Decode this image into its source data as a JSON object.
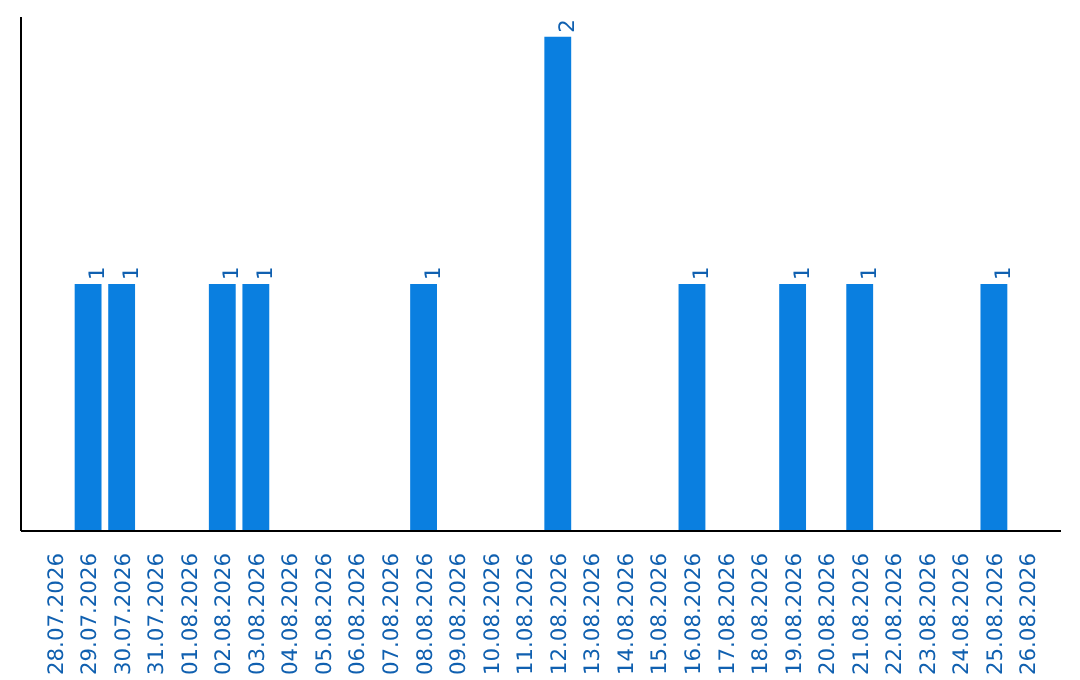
{
  "chart_data": {
    "type": "bar",
    "categories": [
      "28.07.2026",
      "29.07.2026",
      "30.07.2026",
      "31.07.2026",
      "01.08.2026",
      "02.08.2026",
      "03.08.2026",
      "04.08.2026",
      "05.08.2026",
      "06.08.2026",
      "07.08.2026",
      "08.08.2026",
      "09.08.2026",
      "10.08.2026",
      "11.08.2026",
      "12.08.2026",
      "13.08.2026",
      "14.08.2026",
      "15.08.2026",
      "16.08.2026",
      "17.08.2026",
      "18.08.2026",
      "19.08.2026",
      "20.08.2026",
      "21.08.2026",
      "22.08.2026",
      "23.08.2026",
      "24.08.2026",
      "25.08.2026",
      "26.08.2026"
    ],
    "values": [
      null,
      1,
      1,
      null,
      null,
      1,
      1,
      null,
      null,
      null,
      null,
      1,
      null,
      null,
      null,
      2,
      null,
      null,
      null,
      1,
      null,
      null,
      1,
      null,
      1,
      null,
      null,
      null,
      1,
      null
    ],
    "color": "#0a7fe0",
    "data_labels": true,
    "grid": false,
    "tick_labels": "x"
  }
}
